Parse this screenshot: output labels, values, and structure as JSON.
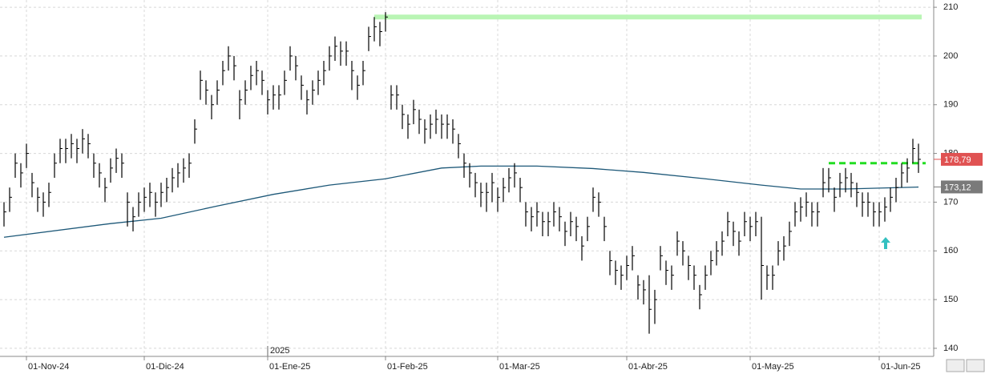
{
  "chart_data": {
    "type": "ohlc",
    "categories": [
      null,
      null,
      null,
      null,
      "01-Nov-24",
      null,
      null,
      null,
      null,
      null,
      null,
      null,
      null,
      null,
      null,
      null,
      null,
      null,
      null,
      null,
      null,
      null,
      null,
      null,
      null,
      "01-Dic-24",
      null,
      null,
      null,
      null,
      null,
      null,
      null,
      null,
      null,
      null,
      null,
      null,
      null,
      null,
      null,
      null,
      null,
      null,
      null,
      null,
      null,
      "01-Ene-25",
      null,
      null,
      null,
      null,
      null,
      null,
      null,
      null,
      null,
      null,
      null,
      null,
      null,
      null,
      null,
      null,
      null,
      null,
      null,
      null,
      "01-Feb-25",
      null,
      null,
      null,
      null,
      null,
      null,
      null,
      null,
      null,
      null,
      null,
      null,
      null,
      null,
      null,
      null,
      null,
      null,
      null,
      "01-Mar-25",
      null,
      null,
      null,
      null,
      null,
      null,
      null,
      null,
      null,
      null,
      null,
      null,
      null,
      null,
      null,
      null,
      null,
      null,
      null,
      null,
      null,
      null,
      "01-Abr-25",
      null,
      null,
      null,
      null,
      null,
      null,
      null,
      null,
      null,
      null,
      null,
      null,
      null,
      null,
      null,
      null,
      null,
      null,
      null,
      null,
      null,
      "01-May-25",
      null,
      null,
      null,
      null,
      null,
      null,
      null,
      null,
      null,
      null,
      null,
      null,
      null,
      null,
      null,
      null,
      null,
      null,
      null,
      null,
      null,
      null,
      "01-Jun-25",
      null,
      null,
      null,
      null,
      null,
      null,
      null
    ],
    "year_marker": {
      "value": 47,
      "label": "2025"
    },
    "high": [
      170,
      173,
      180,
      178,
      182,
      176,
      173,
      172,
      174,
      180,
      183,
      183,
      184,
      183,
      185,
      184,
      180,
      178,
      175,
      179,
      181,
      180,
      172,
      169,
      172,
      173,
      174,
      172,
      174,
      175,
      177,
      178,
      179,
      180,
      187,
      197,
      195,
      192,
      195,
      199,
      202,
      200,
      193,
      195,
      198,
      199,
      197,
      193,
      194,
      194,
      197,
      202,
      200,
      196,
      193,
      195,
      197,
      199,
      202,
      204,
      203,
      203,
      199,
      196,
      199,
      206,
      208,
      207,
      209,
      194,
      194,
      190,
      188,
      191,
      189,
      187,
      188,
      189,
      188,
      188,
      187,
      184,
      180,
      178,
      176,
      174,
      174,
      176,
      173,
      175,
      177,
      178,
      175,
      170,
      169,
      170,
      168,
      168,
      170,
      169,
      166,
      168,
      167,
      163,
      167,
      173,
      172,
      167,
      160,
      158,
      157,
      159,
      161,
      155,
      154,
      155,
      152,
      161,
      158,
      157,
      164,
      162,
      159,
      157,
      153,
      157,
      160,
      162,
      164,
      168,
      166,
      164,
      168,
      167,
      168,
      167,
      157,
      157,
      162,
      163,
      166,
      170,
      171,
      172,
      170,
      170,
      177,
      177,
      173,
      176,
      177,
      176,
      174,
      172,
      172,
      170,
      170,
      171,
      173,
      175,
      178,
      179,
      183,
      182
    ],
    "low": [
      165,
      168,
      175,
      173,
      177,
      171,
      168,
      167,
      169,
      175,
      178,
      178,
      179,
      178,
      180,
      179,
      175,
      173,
      170,
      174,
      176,
      175,
      165,
      164,
      167,
      168,
      169,
      167,
      169,
      170,
      172,
      173,
      174,
      175,
      182,
      191,
      190,
      187,
      190,
      194,
      197,
      195,
      187,
      190,
      193,
      194,
      192,
      188,
      189,
      189,
      192,
      197,
      195,
      191,
      188,
      190,
      192,
      194,
      197,
      199,
      198,
      198,
      193,
      191,
      194,
      201,
      203,
      202,
      205,
      189,
      189,
      185,
      183,
      186,
      184,
      182,
      183,
      184,
      183,
      183,
      182,
      179,
      175,
      173,
      171,
      169,
      168,
      170,
      168,
      170,
      172,
      173,
      170,
      165,
      164,
      165,
      163,
      163,
      165,
      164,
      161,
      163,
      162,
      158,
      162,
      168,
      167,
      162,
      155,
      153,
      152,
      154,
      156,
      150,
      149,
      143,
      145,
      156,
      153,
      152,
      159,
      157,
      154,
      152,
      148,
      152,
      155,
      157,
      159,
      163,
      161,
      159,
      163,
      162,
      163,
      150,
      152,
      152,
      157,
      158,
      161,
      165,
      166,
      167,
      165,
      165,
      171,
      172,
      168,
      171,
      172,
      171,
      169,
      167,
      167,
      165,
      165,
      166,
      168,
      170,
      173,
      174,
      178,
      176
    ],
    "close": [
      168,
      171,
      178,
      176,
      180,
      174,
      171,
      170,
      172,
      178,
      181,
      181,
      182,
      181,
      183,
      182,
      178,
      176,
      173,
      177,
      179,
      178,
      170,
      167,
      170,
      171,
      172,
      170,
      172,
      173,
      175,
      176,
      177,
      178,
      185,
      195,
      193,
      190,
      193,
      197,
      200,
      198,
      191,
      193,
      196,
      197,
      195,
      191,
      192,
      192,
      195,
      200,
      198,
      194,
      191,
      193,
      195,
      197,
      200,
      202,
      201,
      201,
      197,
      194,
      197,
      204,
      206,
      205,
      208,
      192,
      192,
      188,
      186,
      189,
      187,
      185,
      186,
      187,
      186,
      186,
      185,
      182,
      178,
      176,
      174,
      172,
      172,
      174,
      171,
      173,
      175,
      176,
      173,
      168,
      167,
      168,
      166,
      166,
      168,
      167,
      164,
      166,
      165,
      161,
      165,
      171,
      170,
      165,
      158,
      156,
      155,
      157,
      159,
      153,
      152,
      148,
      150,
      159,
      156,
      155,
      162,
      160,
      157,
      155,
      151,
      155,
      158,
      160,
      162,
      166,
      164,
      162,
      166,
      165,
      166,
      157,
      155,
      155,
      160,
      161,
      164,
      168,
      169,
      170,
      168,
      168,
      174,
      175,
      171,
      174,
      175,
      174,
      172,
      170,
      170,
      168,
      168,
      169,
      171,
      173,
      176,
      177,
      181,
      178.79
    ],
    "bar_color": "#000000",
    "moving_average": {
      "color": "#1d5878",
      "x": [
        0,
        19,
        28,
        38,
        48,
        58,
        68,
        78,
        85,
        95,
        105,
        114,
        125,
        135,
        142,
        150,
        163
      ],
      "values": [
        162.8,
        165.6,
        166.7,
        169.2,
        171.6,
        173.5,
        174.8,
        177,
        177.4,
        177.4,
        176.9,
        176.1,
        174.8,
        173.5,
        172.7,
        172.7,
        173.1
      ]
    },
    "resistance": {
      "value": 208,
      "from": 66,
      "color": "#b9f5b4"
    },
    "breakout": {
      "value": 178,
      "from": 147,
      "color": "#22dd22"
    },
    "last_price": {
      "value": 178.79,
      "label": "178,79",
      "color": "#e05252"
    },
    "ma_last": {
      "value": 173.12,
      "label": "173,12",
      "color": "#7a7a7a"
    },
    "ylim": [
      139,
      211
    ],
    "yticks": [
      140,
      150,
      160,
      170,
      180,
      190,
      200,
      210
    ],
    "grid": true
  }
}
